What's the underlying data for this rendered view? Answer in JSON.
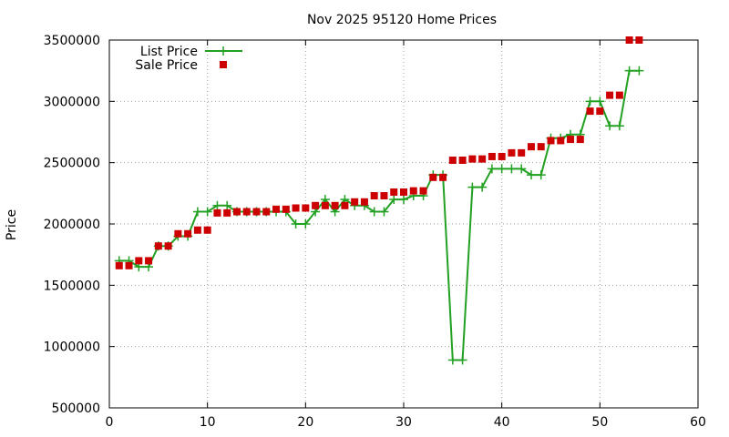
{
  "chart_data": {
    "type": "line",
    "title": "Nov 2025 95120 Home Prices",
    "xlabel": "",
    "ylabel": "Price",
    "xlim": [
      0,
      60
    ],
    "ylim": [
      500000,
      3500000
    ],
    "x_ticks": [
      0,
      10,
      20,
      30,
      40,
      50,
      60
    ],
    "y_ticks": [
      500000,
      1000000,
      1500000,
      2000000,
      2500000,
      3000000,
      3500000
    ],
    "grid": true,
    "legend_position": "top-left",
    "series": [
      {
        "name": "List Price",
        "style": "linespoints",
        "marker": "plus",
        "color": "#22a022",
        "x": [
          1,
          2,
          3,
          4,
          5,
          6,
          7,
          8,
          9,
          10,
          11,
          12,
          13,
          14,
          15,
          16,
          17,
          18,
          19,
          20,
          21,
          22,
          23,
          24,
          25,
          26,
          27,
          28,
          29,
          30,
          31,
          32,
          33,
          34,
          35,
          36,
          37,
          38,
          39,
          40,
          41,
          42,
          43,
          44,
          45,
          46,
          47,
          48,
          49,
          50,
          51,
          52,
          53,
          54
        ],
        "values": [
          1700000,
          1700000,
          1650000,
          1650000,
          1820000,
          1820000,
          1900000,
          1900000,
          2100000,
          2100000,
          2150000,
          2150000,
          2100000,
          2100000,
          2100000,
          2100000,
          2100000,
          2100000,
          2000000,
          2000000,
          2100000,
          2200000,
          2100000,
          2200000,
          2150000,
          2150000,
          2100000,
          2100000,
          2200000,
          2200000,
          2230000,
          2230000,
          2400000,
          2400000,
          890000,
          890000,
          2300000,
          2300000,
          2450000,
          2450000,
          2450000,
          2450000,
          2400000,
          2400000,
          2700000,
          2700000,
          2730000,
          2730000,
          3000000,
          3000000,
          2800000,
          2800000,
          3250000,
          3250000
        ]
      },
      {
        "name": "Sale Price",
        "style": "points",
        "marker": "square",
        "color": "#cc0000",
        "x": [
          1,
          2,
          3,
          4,
          5,
          6,
          7,
          8,
          9,
          10,
          11,
          12,
          13,
          14,
          15,
          16,
          17,
          18,
          19,
          20,
          21,
          22,
          23,
          24,
          25,
          26,
          27,
          28,
          29,
          30,
          31,
          32,
          33,
          34,
          35,
          36,
          37,
          38,
          39,
          40,
          41,
          42,
          43,
          44,
          45,
          46,
          47,
          48,
          49,
          50,
          51,
          52,
          53,
          54
        ],
        "values": [
          1660000,
          1660000,
          1700000,
          1700000,
          1820000,
          1820000,
          1920000,
          1920000,
          1950000,
          1950000,
          2090000,
          2090000,
          2100000,
          2100000,
          2100000,
          2100000,
          2120000,
          2120000,
          2130000,
          2130000,
          2150000,
          2150000,
          2150000,
          2150000,
          2180000,
          2180000,
          2230000,
          2230000,
          2260000,
          2260000,
          2270000,
          2270000,
          2380000,
          2380000,
          2520000,
          2520000,
          2530000,
          2530000,
          2550000,
          2550000,
          2580000,
          2580000,
          2630000,
          2630000,
          2680000,
          2680000,
          2690000,
          2690000,
          2920000,
          2920000,
          3050000,
          3050000,
          3500000,
          3500000
        ]
      }
    ]
  }
}
